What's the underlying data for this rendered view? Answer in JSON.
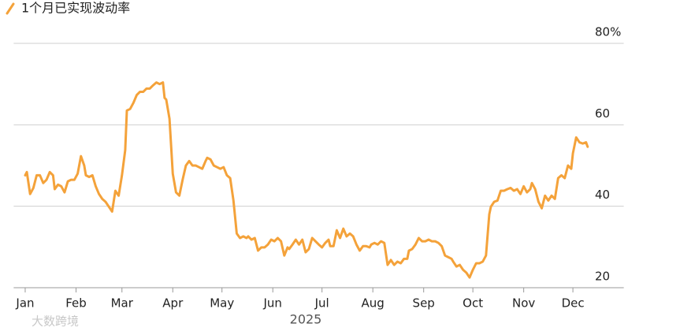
{
  "chart_data": {
    "type": "line",
    "watermark": "大数跨境",
    "xlabel": "2025",
    "xlim": [
      -7,
      365
    ],
    "xticks": [
      {
        "value": 0,
        "label": "Jan"
      },
      {
        "value": 31,
        "label": "Feb"
      },
      {
        "value": 59,
        "label": "Mar"
      },
      {
        "value": 90,
        "label": "Apr"
      },
      {
        "value": 120,
        "label": "May"
      },
      {
        "value": 151,
        "label": "Jun"
      },
      {
        "value": 181,
        "label": "Jul"
      },
      {
        "value": 212,
        "label": "Aug"
      },
      {
        "value": 243,
        "label": "Sep"
      },
      {
        "value": 273,
        "label": "Oct"
      },
      {
        "value": 304,
        "label": "Nov"
      },
      {
        "value": 334,
        "label": "Dec"
      }
    ],
    "ylim": [
      20,
      80
    ],
    "yticks": [
      20,
      40,
      60,
      {
        "value": 80,
        "label": "80%"
      }
    ],
    "grid": true,
    "legend": "top-left",
    "x": [
      0,
      1,
      3,
      5,
      7,
      9,
      11,
      13,
      15,
      17,
      18,
      20,
      22,
      24,
      26,
      28,
      30,
      32,
      34,
      36,
      37,
      39,
      41,
      43,
      45,
      47,
      49,
      51,
      53,
      55,
      57,
      59,
      61,
      62,
      64,
      66,
      68,
      70,
      72,
      74,
      76,
      78,
      80,
      82,
      84,
      85,
      86,
      88,
      90,
      92,
      94,
      96,
      98,
      100,
      102,
      104,
      106,
      108,
      110,
      111,
      113,
      115,
      117,
      119,
      121,
      123,
      125,
      127,
      129,
      131,
      133,
      135,
      136,
      138,
      140,
      142,
      144,
      146,
      148,
      150,
      152,
      154,
      156,
      158,
      160,
      161,
      163,
      165,
      167,
      169,
      171,
      173,
      175,
      177,
      179,
      181,
      183,
      185,
      186,
      188,
      190,
      192,
      194,
      196,
      198,
      200,
      202,
      204,
      206,
      208,
      210,
      211,
      213,
      215,
      217,
      219,
      221,
      223,
      225,
      227,
      229,
      231,
      233,
      234,
      236,
      238,
      240,
      242,
      244,
      246,
      248,
      250,
      252,
      254,
      256,
      258,
      260,
      261,
      263,
      265,
      267,
      269,
      271,
      273,
      275,
      277,
      279,
      281,
      283,
      284,
      286,
      288,
      290,
      292,
      294,
      296,
      298,
      300,
      302,
      304,
      306,
      308,
      309,
      311,
      313,
      315,
      317,
      319,
      321,
      323,
      325,
      327,
      329,
      331,
      333,
      334,
      336,
      338,
      340,
      342,
      343
    ],
    "series": [
      {
        "name": "1个月已实现波动率",
        "color": "#f4a23a",
        "values": [
          47.6,
          48.4,
          43.0,
          44.5,
          47.6,
          47.6,
          45.7,
          46.5,
          48.4,
          47.6,
          44.2,
          45.3,
          44.9,
          43.4,
          46.1,
          46.5,
          46.5,
          48.0,
          52.3,
          50.0,
          47.6,
          47.2,
          47.6,
          44.9,
          43.0,
          41.8,
          41.1,
          39.9,
          38.7,
          43.8,
          42.6,
          47.6,
          53.8,
          63.5,
          63.9,
          65.4,
          67.3,
          68.1,
          68.1,
          68.9,
          68.9,
          69.7,
          70.4,
          70.0,
          70.4,
          66.6,
          66.2,
          61.5,
          48.0,
          43.4,
          42.6,
          46.5,
          50.0,
          51.1,
          50.0,
          50.0,
          49.6,
          49.2,
          51.1,
          51.9,
          51.5,
          50.0,
          49.6,
          49.2,
          49.6,
          47.6,
          46.9,
          41.4,
          33.3,
          32.2,
          32.6,
          32.2,
          32.6,
          31.8,
          32.2,
          29.1,
          29.9,
          29.9,
          30.6,
          31.8,
          31.4,
          32.2,
          31.4,
          27.9,
          29.9,
          29.5,
          30.6,
          31.8,
          30.6,
          31.8,
          28.7,
          29.5,
          32.2,
          31.4,
          30.6,
          29.9,
          31.0,
          31.8,
          30.2,
          30.2,
          34.1,
          32.2,
          34.5,
          32.6,
          33.3,
          32.6,
          30.6,
          29.1,
          30.2,
          30.2,
          29.9,
          30.6,
          31.0,
          30.6,
          31.4,
          31.0,
          25.6,
          26.8,
          25.6,
          26.4,
          26.0,
          27.1,
          27.1,
          29.1,
          29.5,
          30.6,
          32.2,
          31.4,
          31.4,
          31.8,
          31.4,
          31.4,
          31.0,
          30.2,
          27.9,
          27.5,
          27.1,
          26.4,
          25.2,
          25.6,
          24.4,
          23.7,
          22.5,
          24.4,
          26.0,
          26.0,
          26.4,
          27.9,
          38.0,
          39.9,
          41.1,
          41.4,
          43.8,
          43.8,
          44.2,
          44.5,
          43.8,
          44.2,
          43.0,
          44.9,
          43.4,
          44.2,
          45.7,
          44.2,
          41.1,
          39.5,
          42.6,
          41.4,
          42.6,
          41.8,
          46.9,
          47.6,
          46.9,
          50.0,
          49.2,
          53.0,
          56.9,
          55.7,
          55.4,
          55.7,
          54.6
        ]
      }
    ]
  }
}
